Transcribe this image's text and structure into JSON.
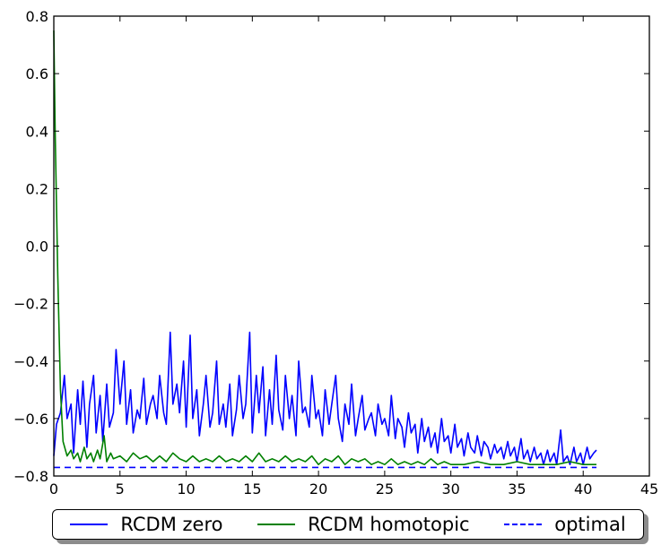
{
  "chart_data": {
    "type": "line",
    "title": "",
    "xlabel": "",
    "ylabel": "",
    "xlim": [
      0,
      45
    ],
    "ylim": [
      -0.8,
      0.8
    ],
    "x_ticks": [
      0,
      5,
      10,
      15,
      20,
      25,
      30,
      35,
      40,
      45
    ],
    "x_tick_labels": [
      "0",
      "5",
      "10",
      "15",
      "20",
      "25",
      "30",
      "35",
      "40",
      "45"
    ],
    "y_ticks": [
      -0.8,
      -0.6,
      -0.4,
      -0.2,
      0.0,
      0.2,
      0.4,
      0.6,
      0.8
    ],
    "y_tick_labels": [
      "−0.8",
      "−0.6",
      "−0.4",
      "−0.2",
      "0.0",
      "0.2",
      "0.4",
      "0.6",
      "0.8"
    ],
    "grid": false,
    "legend_position": "below",
    "series": [
      {
        "name": "RCDM zero",
        "color": "#0000ff",
        "style": "solid",
        "x": [
          0,
          0.2,
          0.5,
          0.8,
          1.0,
          1.3,
          1.5,
          1.8,
          2.0,
          2.2,
          2.5,
          2.7,
          3.0,
          3.2,
          3.5,
          3.7,
          4.0,
          4.2,
          4.5,
          4.7,
          5.0,
          5.3,
          5.5,
          5.8,
          6.0,
          6.3,
          6.5,
          6.8,
          7.0,
          7.3,
          7.5,
          7.8,
          8.0,
          8.3,
          8.5,
          8.8,
          9.0,
          9.3,
          9.5,
          9.8,
          10.0,
          10.3,
          10.5,
          10.8,
          11.0,
          11.3,
          11.5,
          11.8,
          12.0,
          12.3,
          12.5,
          12.8,
          13.0,
          13.3,
          13.5,
          13.8,
          14.0,
          14.3,
          14.5,
          14.8,
          15.0,
          15.3,
          15.5,
          15.8,
          16.0,
          16.3,
          16.5,
          16.8,
          17.0,
          17.3,
          17.5,
          17.8,
          18.0,
          18.3,
          18.5,
          18.8,
          19.0,
          19.3,
          19.5,
          19.8,
          20.0,
          20.3,
          20.5,
          20.8,
          21.0,
          21.3,
          21.5,
          21.8,
          22.0,
          22.3,
          22.5,
          22.8,
          23.0,
          23.3,
          23.5,
          23.8,
          24.0,
          24.3,
          24.5,
          24.8,
          25.0,
          25.3,
          25.5,
          25.8,
          26.0,
          26.3,
          26.5,
          26.8,
          27.0,
          27.3,
          27.5,
          27.8,
          28.0,
          28.3,
          28.5,
          28.8,
          29.0,
          29.3,
          29.5,
          29.8,
          30.0,
          30.3,
          30.5,
          30.8,
          31.0,
          31.3,
          31.5,
          31.8,
          32.0,
          32.3,
          32.5,
          32.8,
          33.0,
          33.3,
          33.5,
          33.8,
          34.0,
          34.3,
          34.5,
          34.8,
          35.0,
          35.3,
          35.5,
          35.8,
          36.0,
          36.3,
          36.5,
          36.8,
          37.0,
          37.3,
          37.5,
          37.8,
          38.0,
          38.3,
          38.5,
          38.8,
          39.0,
          39.3,
          39.5,
          39.8,
          40.0,
          40.3,
          40.5,
          40.8,
          41.0
        ],
        "y": [
          -0.73,
          -0.62,
          -0.58,
          -0.45,
          -0.6,
          -0.55,
          -0.72,
          -0.5,
          -0.62,
          -0.47,
          -0.7,
          -0.55,
          -0.45,
          -0.65,
          -0.52,
          -0.68,
          -0.48,
          -0.63,
          -0.58,
          -0.36,
          -0.55,
          -0.4,
          -0.62,
          -0.5,
          -0.65,
          -0.57,
          -0.6,
          -0.46,
          -0.62,
          -0.55,
          -0.52,
          -0.6,
          -0.45,
          -0.58,
          -0.62,
          -0.3,
          -0.55,
          -0.48,
          -0.58,
          -0.4,
          -0.63,
          -0.31,
          -0.6,
          -0.5,
          -0.66,
          -0.55,
          -0.45,
          -0.63,
          -0.58,
          -0.4,
          -0.62,
          -0.55,
          -0.63,
          -0.48,
          -0.66,
          -0.57,
          -0.45,
          -0.6,
          -0.55,
          -0.3,
          -0.65,
          -0.45,
          -0.58,
          -0.42,
          -0.66,
          -0.5,
          -0.62,
          -0.38,
          -0.57,
          -0.64,
          -0.45,
          -0.6,
          -0.52,
          -0.66,
          -0.4,
          -0.58,
          -0.56,
          -0.63,
          -0.45,
          -0.6,
          -0.57,
          -0.66,
          -0.5,
          -0.62,
          -0.55,
          -0.45,
          -0.6,
          -0.68,
          -0.55,
          -0.62,
          -0.48,
          -0.66,
          -0.6,
          -0.52,
          -0.64,
          -0.6,
          -0.58,
          -0.66,
          -0.55,
          -0.62,
          -0.6,
          -0.66,
          -0.52,
          -0.67,
          -0.6,
          -0.63,
          -0.7,
          -0.58,
          -0.65,
          -0.62,
          -0.72,
          -0.6,
          -0.68,
          -0.63,
          -0.7,
          -0.65,
          -0.72,
          -0.6,
          -0.68,
          -0.66,
          -0.72,
          -0.62,
          -0.7,
          -0.67,
          -0.73,
          -0.65,
          -0.7,
          -0.72,
          -0.66,
          -0.73,
          -0.68,
          -0.7,
          -0.74,
          -0.69,
          -0.72,
          -0.7,
          -0.74,
          -0.68,
          -0.73,
          -0.7,
          -0.75,
          -0.67,
          -0.74,
          -0.71,
          -0.75,
          -0.7,
          -0.74,
          -0.72,
          -0.76,
          -0.71,
          -0.75,
          -0.72,
          -0.76,
          -0.64,
          -0.75,
          -0.73,
          -0.76,
          -0.7,
          -0.75,
          -0.72,
          -0.76,
          -0.7,
          -0.74,
          -0.72,
          -0.71
        ]
      },
      {
        "name": "RCDM homotopic",
        "color": "#008000",
        "style": "solid",
        "x": [
          0,
          0.1,
          0.3,
          0.5,
          0.7,
          1.0,
          1.3,
          1.5,
          1.8,
          2.0,
          2.3,
          2.5,
          2.8,
          3.0,
          3.3,
          3.5,
          3.8,
          4.0,
          4.3,
          4.5,
          5.0,
          5.5,
          6.0,
          6.5,
          7.0,
          7.5,
          8.0,
          8.5,
          9.0,
          9.5,
          10.0,
          10.5,
          11.0,
          11.5,
          12.0,
          12.5,
          13.0,
          13.5,
          14.0,
          14.5,
          15.0,
          15.5,
          16.0,
          16.5,
          17.0,
          17.5,
          18.0,
          18.5,
          19.0,
          19.5,
          20.0,
          20.5,
          21.0,
          21.5,
          22.0,
          22.5,
          23.0,
          23.5,
          24.0,
          24.5,
          25.0,
          25.5,
          26.0,
          26.5,
          27.0,
          27.5,
          28.0,
          28.5,
          29.0,
          29.5,
          30.0,
          31.0,
          32.0,
          33.0,
          34.0,
          35.0,
          36.0,
          37.0,
          38.0,
          39.0,
          40.0,
          41.0
        ],
        "y": [
          0.75,
          0.4,
          -0.1,
          -0.5,
          -0.68,
          -0.73,
          -0.71,
          -0.74,
          -0.72,
          -0.75,
          -0.7,
          -0.74,
          -0.72,
          -0.75,
          -0.71,
          -0.74,
          -0.66,
          -0.75,
          -0.72,
          -0.74,
          -0.73,
          -0.75,
          -0.72,
          -0.74,
          -0.73,
          -0.75,
          -0.73,
          -0.75,
          -0.72,
          -0.74,
          -0.75,
          -0.73,
          -0.75,
          -0.74,
          -0.75,
          -0.73,
          -0.75,
          -0.74,
          -0.75,
          -0.73,
          -0.75,
          -0.72,
          -0.75,
          -0.74,
          -0.75,
          -0.73,
          -0.75,
          -0.74,
          -0.75,
          -0.73,
          -0.76,
          -0.74,
          -0.75,
          -0.73,
          -0.76,
          -0.74,
          -0.75,
          -0.74,
          -0.76,
          -0.75,
          -0.76,
          -0.74,
          -0.76,
          -0.75,
          -0.76,
          -0.75,
          -0.76,
          -0.74,
          -0.76,
          -0.75,
          -0.76,
          -0.76,
          -0.75,
          -0.76,
          -0.76,
          -0.75,
          -0.76,
          -0.76,
          -0.76,
          -0.75,
          -0.76,
          -0.76
        ]
      },
      {
        "name": "optimal",
        "color": "#0000ff",
        "style": "dashed",
        "x": [
          0,
          41
        ],
        "y": [
          -0.77,
          -0.77
        ]
      }
    ]
  }
}
